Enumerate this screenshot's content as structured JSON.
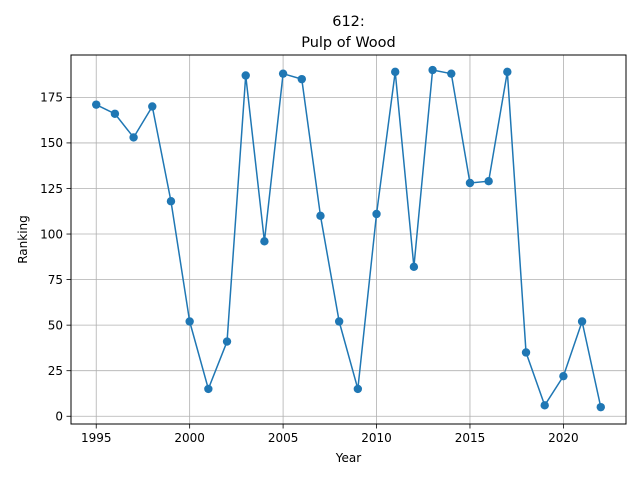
{
  "chart_data": {
    "type": "line",
    "title_line1": "612:",
    "title_line2": "Pulp of Wood",
    "xlabel": "Year",
    "ylabel": "Ranking",
    "xlim": [
      1993.65,
      1995.0
    ],
    "ylim": [
      -4.25,
      198.25
    ],
    "xticks": [
      1995,
      2000,
      2005,
      2010,
      2015,
      2020
    ],
    "yticks": [
      0,
      25,
      50,
      75,
      100,
      125,
      150,
      175
    ],
    "grid": true,
    "colors": {
      "series": "#1f77b4"
    },
    "series": [
      {
        "x": [
          1995,
          1996,
          1997,
          1998,
          1999,
          2000,
          2001,
          2002,
          2003,
          2004,
          2005,
          2006,
          2007,
          2008,
          2009,
          2010,
          2011,
          2012,
          2013,
          2014,
          2015,
          2016,
          2017,
          2018,
          2019,
          2020,
          2021,
          2022
        ],
        "values": [
          171,
          166,
          153,
          170,
          118,
          52,
          15,
          41,
          187,
          96,
          188,
          185,
          110,
          52,
          15,
          111,
          189,
          82,
          190,
          188,
          128,
          129,
          189,
          35,
          6,
          22,
          52,
          5
        ]
      }
    ]
  }
}
